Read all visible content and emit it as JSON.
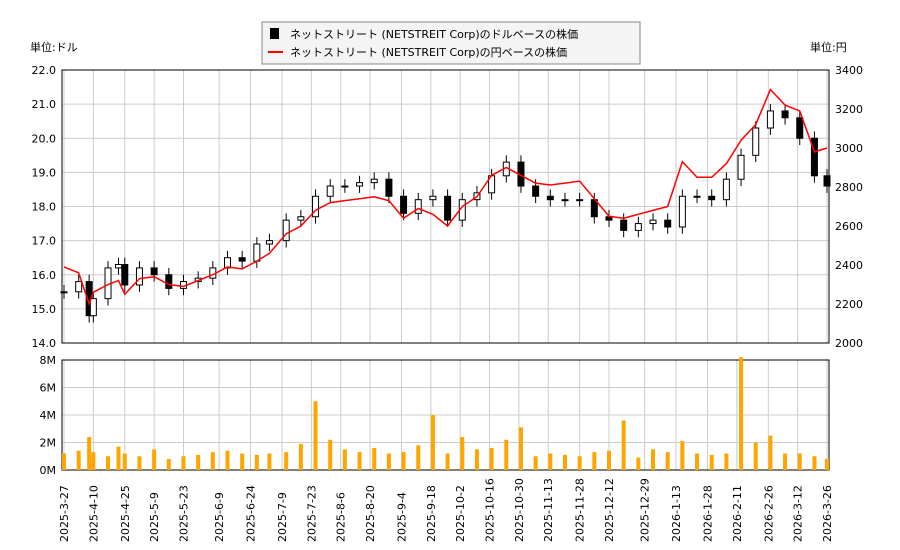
{
  "chart_data": [
    {
      "type": "candlestick+line",
      "legend": [
        "ネットストリート (NETSTREIT Corp)のドルベースの株価",
        "ネットストリート (NETSTREIT Corp)の円ベースの株価"
      ],
      "legend_placement": "top-center",
      "left_unit": "単位:ドル",
      "right_unit": "単位:円",
      "ylim": [
        14.0,
        22.0
      ],
      "y2lim": [
        2000,
        3400
      ],
      "yticks": [
        "14.0",
        "15.0",
        "16.0",
        "17.0",
        "18.0",
        "19.0",
        "20.0",
        "21.0",
        "22.0"
      ],
      "y2ticks": [
        "2000",
        "2200",
        "2400",
        "2600",
        "2800",
        "3000",
        "3200",
        "3400"
      ],
      "grid": true,
      "colors": {
        "usd": "#000000",
        "jpy": "#ff0000"
      },
      "dates": [
        "2025-03-27",
        "2025-04-03",
        "2025-04-08",
        "2025-04-10",
        "2025-04-17",
        "2025-04-22",
        "2025-04-25",
        "2025-05-02",
        "2025-05-09",
        "2025-05-16",
        "2025-05-23",
        "2025-05-30",
        "2025-06-06",
        "2025-06-13",
        "2025-06-20",
        "2025-06-27",
        "2025-07-03",
        "2025-07-11",
        "2025-07-18",
        "2025-07-25",
        "2025-08-01",
        "2025-08-08",
        "2025-08-15",
        "2025-08-22",
        "2025-08-29",
        "2025-09-05",
        "2025-09-12",
        "2025-09-19",
        "2025-09-26",
        "2025-10-03",
        "2025-10-10",
        "2025-10-17",
        "2025-10-24",
        "2025-10-31",
        "2025-11-07",
        "2025-11-14",
        "2025-11-21",
        "2025-11-28",
        "2025-12-05",
        "2025-12-12",
        "2025-12-19",
        "2025-12-26",
        "2026-01-02",
        "2026-01-09",
        "2026-01-16",
        "2026-01-23",
        "2026-01-30",
        "2026-02-06",
        "2026-02-13",
        "2026-02-20",
        "2026-02-27",
        "2026-03-06",
        "2026-03-13",
        "2026-03-20",
        "2026-03-26"
      ],
      "usd_close": [
        15.5,
        15.8,
        14.8,
        15.3,
        16.2,
        16.3,
        15.7,
        16.2,
        16.0,
        15.6,
        15.8,
        15.9,
        16.2,
        16.5,
        16.4,
        16.9,
        17.0,
        17.6,
        17.7,
        18.3,
        18.6,
        18.6,
        18.7,
        18.8,
        18.3,
        17.8,
        18.2,
        18.3,
        17.6,
        18.2,
        18.4,
        18.9,
        19.3,
        18.6,
        18.3,
        18.2,
        18.2,
        18.2,
        17.7,
        17.6,
        17.3,
        17.5,
        17.6,
        17.4,
        18.3,
        18.3,
        18.2,
        18.8,
        19.5,
        20.3,
        20.8,
        20.6,
        20.0,
        18.9,
        18.6
      ],
      "jpy_close": [
        2390,
        2360,
        2200,
        2260,
        2300,
        2320,
        2250,
        2330,
        2340,
        2300,
        2290,
        2320,
        2350,
        2390,
        2380,
        2420,
        2460,
        2560,
        2600,
        2680,
        2720,
        2730,
        2740,
        2750,
        2730,
        2640,
        2690,
        2660,
        2600,
        2700,
        2750,
        2860,
        2900,
        2860,
        2820,
        2810,
        2820,
        2830,
        2740,
        2650,
        2640,
        2660,
        2680,
        2700,
        2930,
        2850,
        2850,
        2920,
        3040,
        3120,
        3300,
        3220,
        3190,
        2980,
        3000
      ]
    },
    {
      "type": "bar",
      "ylim": [
        0,
        8
      ],
      "yticks": [
        "0M",
        "2M",
        "4M",
        "6M",
        "8M"
      ],
      "color": "#ffa500",
      "values_millions": [
        1.2,
        1.4,
        2.4,
        1.3,
        1.0,
        1.7,
        1.2,
        1.0,
        1.5,
        0.8,
        1.0,
        1.1,
        1.3,
        1.4,
        1.2,
        1.1,
        1.2,
        1.3,
        1.9,
        5.0,
        2.2,
        1.5,
        1.3,
        1.6,
        1.2,
        1.3,
        1.8,
        4.0,
        1.2,
        2.4,
        1.5,
        1.6,
        2.2,
        3.1,
        1.0,
        1.2,
        1.1,
        1.0,
        1.3,
        1.4,
        3.6,
        0.9,
        1.5,
        1.3,
        2.1,
        1.2,
        1.1,
        1.2,
        8.2,
        2.0,
        2.5,
        1.2,
        1.2,
        1.0,
        0.8
      ]
    }
  ],
  "xticks": [
    "2025-3-27",
    "2025-4-10",
    "2025-4-25",
    "2025-5-9",
    "2025-5-23",
    "2025-6-9",
    "2025-6-24",
    "2025-7-9",
    "2025-7-23",
    "2025-8-6",
    "2025-8-20",
    "2025-9-4",
    "2025-9-18",
    "2025-10-2",
    "2025-10-16",
    "2025-10-30",
    "2025-11-13",
    "2025-11-28",
    "2025-12-12",
    "2025-12-29",
    "2026-1-13",
    "2026-1-28",
    "2026-2-11",
    "2026-2-26",
    "2026-3-12",
    "2026-3-26"
  ]
}
